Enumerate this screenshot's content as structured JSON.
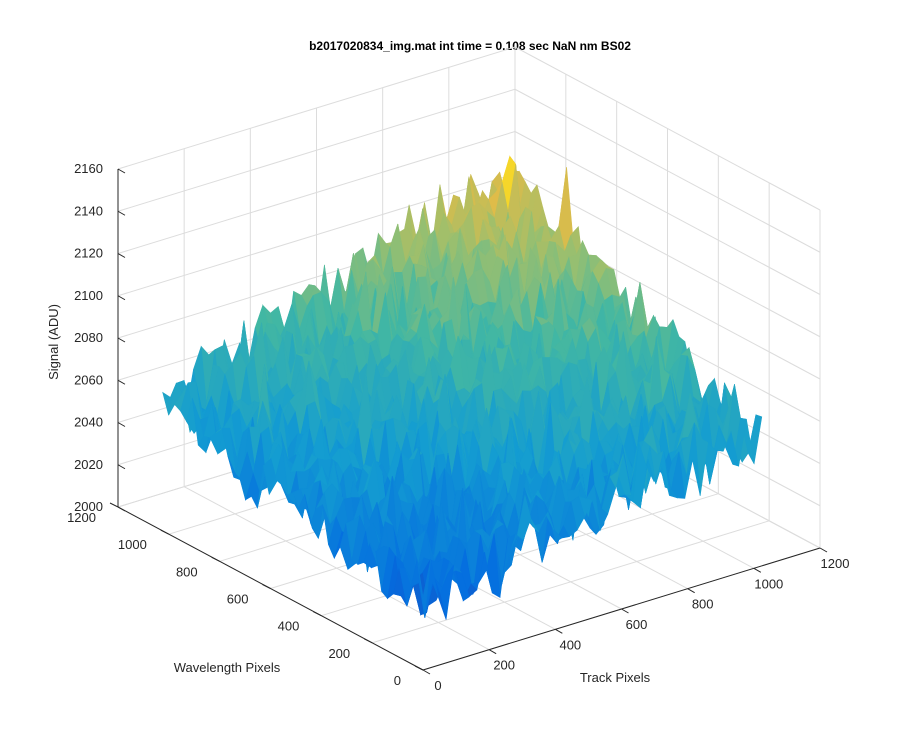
{
  "chart_data": {
    "type": "surface",
    "title": "b2017020834_img.mat int time = 0.108 sec  NaN nm BS02",
    "xlabel": "Track Pixels",
    "ylabel": "Wavelength Pixels",
    "zlabel": "Signal (ADU)",
    "xlim": [
      0,
      1200
    ],
    "ylim": [
      0,
      1200
    ],
    "zlim": [
      2000,
      2160
    ],
    "xticks": [
      "0",
      "200",
      "400",
      "600",
      "800",
      "1000",
      "1200"
    ],
    "yticks": [
      "0",
      "200",
      "400",
      "600",
      "800",
      "1000",
      "1200"
    ],
    "zticks": [
      "2000",
      "2020",
      "2040",
      "2060",
      "2080",
      "2100",
      "2120",
      "2140",
      "2160"
    ],
    "grid": true,
    "colormap": "parula",
    "surface_extent": {
      "x": [
        0,
        1024
      ],
      "y": [
        0,
        1024
      ]
    },
    "corner_values": {
      "x0_y0": 2030,
      "x1024_y0": 2060,
      "x0_y1024": 2060,
      "x1024_y1024": 2120
    },
    "noise_amplitude": 15,
    "colors": {
      "axis": "#262626",
      "grid": "#dcdcdc",
      "background": "#ffffff"
    }
  }
}
